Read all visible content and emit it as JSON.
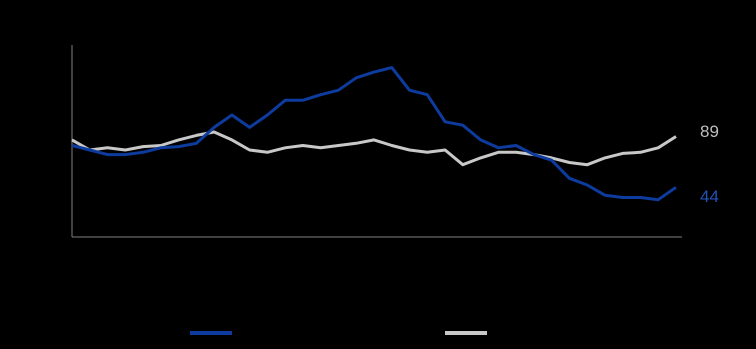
{
  "chart_data": {
    "type": "line",
    "ylim": [
      0,
      170
    ],
    "axes_color": "#7f7f7f",
    "background": "#000000",
    "series": [
      {
        "color": "#0d3b9e",
        "values": [
          81,
          77,
          73,
          73,
          75,
          79,
          80,
          83,
          97,
          108,
          97,
          108,
          121,
          121,
          126,
          130,
          141,
          146,
          150,
          130,
          126,
          102,
          99,
          86,
          79,
          81,
          73,
          68,
          52,
          46,
          37,
          35,
          35,
          33,
          44
        ]
      },
      {
        "color": "#c8c8c8",
        "values": [
          86,
          77,
          79,
          77,
          80,
          81,
          86,
          90,
          93,
          86,
          77,
          75,
          79,
          81,
          79,
          81,
          83,
          86,
          81,
          77,
          75,
          77,
          64,
          70,
          75,
          75,
          73,
          70,
          66,
          64,
          70,
          74,
          75,
          79,
          89
        ]
      }
    ]
  }
}
